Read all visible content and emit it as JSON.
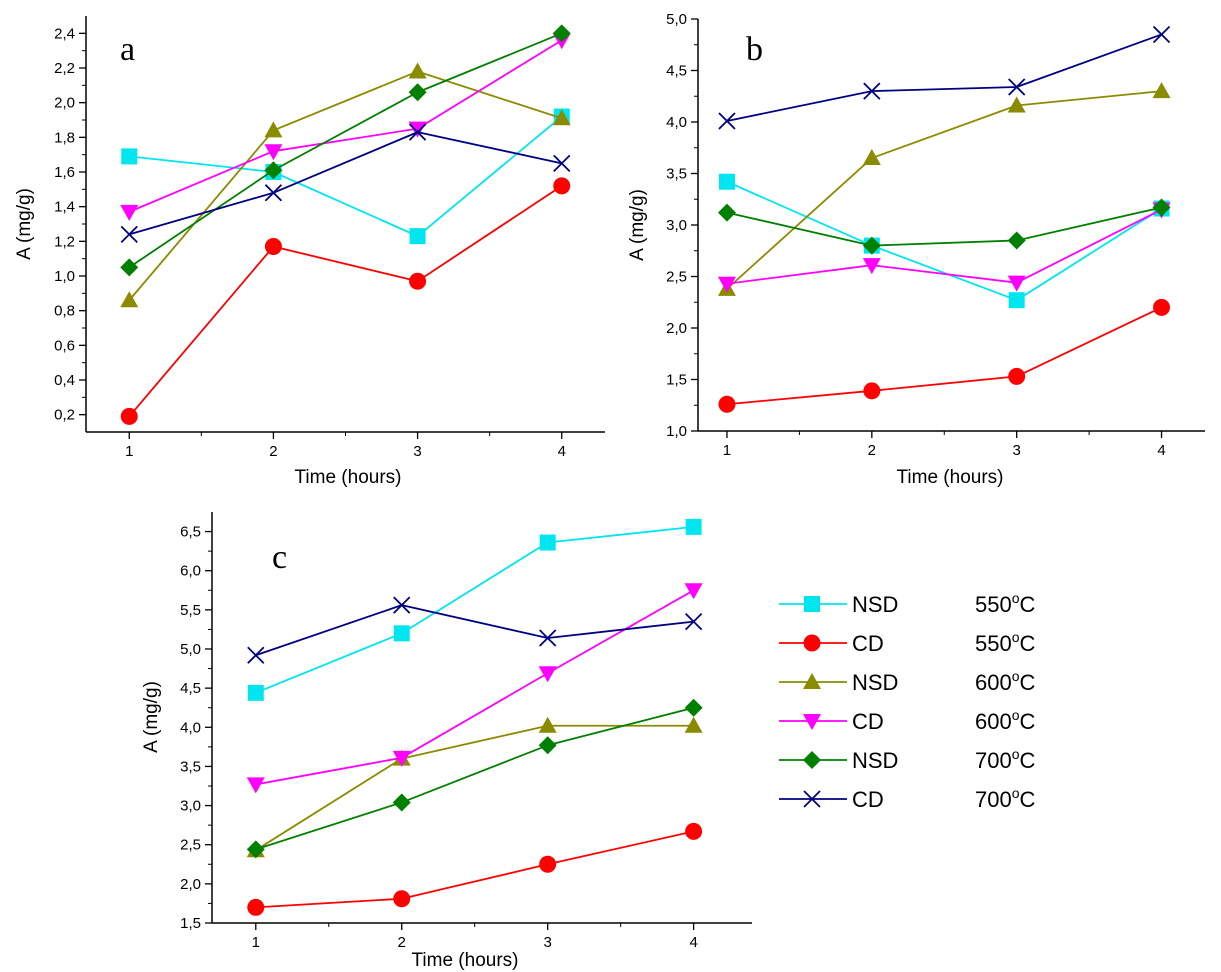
{
  "legend": [
    {
      "series": "NSD",
      "temperature": "550",
      "unit": "oC"
    },
    {
      "series": "CD",
      "temperature": "550",
      "unit": "oC"
    },
    {
      "series": "NSD",
      "temperature": "600",
      "unit": "oC"
    },
    {
      "series": "CD",
      "temperature": "600",
      "unit": "oC"
    },
    {
      "series": "NSD",
      "temperature": "700",
      "unit": "oC"
    },
    {
      "series": "CD",
      "temperature": "700",
      "unit": "oC"
    }
  ],
  "chart_data": [
    {
      "panel": "a",
      "type": "line",
      "xlabel": "Time (hours)",
      "ylabel": "A (mg/g)",
      "x": [
        1,
        2,
        3,
        4
      ],
      "xticks": [
        "1",
        "2",
        "3",
        "4"
      ],
      "yticks": [
        "0,2",
        "0,4",
        "0,6",
        "0,8",
        "1,0",
        "1,2",
        "1,4",
        "1,6",
        "1,8",
        "2,0",
        "2,2",
        "2,4"
      ],
      "xlim": [
        0.7,
        4.3
      ],
      "ylim": [
        0.1,
        2.5
      ],
      "series": [
        {
          "name": "NSD 550°C",
          "color": "#00e6f0",
          "marker": "square",
          "values": [
            1.69,
            1.6,
            1.23,
            1.92
          ]
        },
        {
          "name": "CD 550°C",
          "color": "#ff0000",
          "marker": "circle",
          "values": [
            0.19,
            1.17,
            0.97,
            1.52
          ]
        },
        {
          "name": "NSD 600°C",
          "color": "#8b8b00",
          "marker": "triangle-up",
          "values": [
            0.86,
            1.84,
            2.18,
            1.91
          ]
        },
        {
          "name": "CD 600°C",
          "color": "#ff00ff",
          "marker": "triangle-down",
          "values": [
            1.37,
            1.72,
            1.85,
            2.36
          ]
        },
        {
          "name": "NSD 700°C",
          "color": "#008000",
          "marker": "diamond",
          "values": [
            1.05,
            1.61,
            2.06,
            2.4
          ]
        },
        {
          "name": "CD 700°C",
          "color": "#000080",
          "marker": "x",
          "values": [
            1.24,
            1.48,
            1.83,
            1.65
          ]
        }
      ]
    },
    {
      "panel": "b",
      "type": "line",
      "xlabel": "Time (hours)",
      "ylabel": "A (mg/g)",
      "x": [
        1,
        2,
        3,
        4
      ],
      "xticks": [
        "1",
        "2",
        "3",
        "4"
      ],
      "yticks": [
        "1,0",
        "1,5",
        "2,0",
        "2,5",
        "3,0",
        "3,5",
        "4,0",
        "4,5",
        "5,0"
      ],
      "xlim": [
        0.8,
        4.3
      ],
      "ylim": [
        1.0,
        5.0
      ],
      "series": [
        {
          "name": "NSD 550°C",
          "color": "#00e6f0",
          "marker": "square",
          "values": [
            3.42,
            2.8,
            2.27,
            3.16
          ]
        },
        {
          "name": "CD 550°C",
          "color": "#ff0000",
          "marker": "circle",
          "values": [
            1.26,
            1.39,
            1.53,
            2.2
          ]
        },
        {
          "name": "NSD 600°C",
          "color": "#8b8b00",
          "marker": "triangle-up",
          "values": [
            2.38,
            3.65,
            4.16,
            4.3
          ]
        },
        {
          "name": "CD 600°C",
          "color": "#ff00ff",
          "marker": "triangle-down",
          "values": [
            2.43,
            2.61,
            2.44,
            3.15
          ]
        },
        {
          "name": "NSD 700°C",
          "color": "#008000",
          "marker": "diamond",
          "values": [
            3.12,
            2.8,
            2.85,
            3.17
          ]
        },
        {
          "name": "CD 700°C",
          "color": "#000080",
          "marker": "x",
          "values": [
            4.01,
            4.3,
            4.34,
            4.85
          ]
        }
      ]
    },
    {
      "panel": "c",
      "type": "line",
      "xlabel": "Time (hours)",
      "ylabel": "A (mg/g)",
      "x": [
        1,
        2,
        3,
        4
      ],
      "xticks": [
        "1",
        "2",
        "3",
        "4"
      ],
      "yticks": [
        "1,5",
        "2,0",
        "2,5",
        "3,0",
        "3,5",
        "4,0",
        "4,5",
        "5,0",
        "5,5",
        "6,0",
        "6,5"
      ],
      "xlim": [
        0.7,
        4.4
      ],
      "ylim": [
        1.5,
        6.75
      ],
      "series": [
        {
          "name": "NSD 550°C",
          "color": "#00e6f0",
          "marker": "square",
          "values": [
            4.44,
            5.2,
            6.36,
            6.56
          ]
        },
        {
          "name": "CD 550°C",
          "color": "#ff0000",
          "marker": "circle",
          "values": [
            1.7,
            1.81,
            2.25,
            2.67
          ]
        },
        {
          "name": "NSD 600°C",
          "color": "#8b8b00",
          "marker": "triangle-up",
          "values": [
            2.43,
            3.6,
            4.02,
            4.02
          ]
        },
        {
          "name": "CD 600°C",
          "color": "#ff00ff",
          "marker": "triangle-down",
          "values": [
            3.27,
            3.61,
            4.69,
            5.75
          ]
        },
        {
          "name": "NSD 700°C",
          "color": "#008000",
          "marker": "diamond",
          "values": [
            2.44,
            3.04,
            3.77,
            4.25
          ]
        },
        {
          "name": "CD 700°C",
          "color": "#000080",
          "marker": "x",
          "values": [
            4.92,
            5.56,
            5.14,
            5.35
          ]
        }
      ]
    }
  ]
}
